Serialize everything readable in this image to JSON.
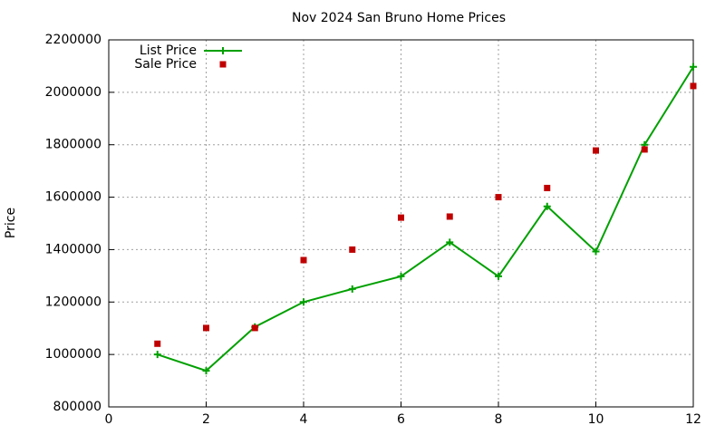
{
  "chart_data": {
    "type": "line",
    "title": "Nov 2024 San Bruno Home Prices",
    "y_label": "Price",
    "x": [
      1,
      2,
      3,
      4,
      5,
      6,
      7,
      8,
      9,
      10,
      11,
      12
    ],
    "series": [
      {
        "name": "List Price",
        "color": "#00a000",
        "style": "linespoints",
        "values": [
          1000000,
          938000,
          1105000,
          1200000,
          1250000,
          1298000,
          1428000,
          1298000,
          1565000,
          1393000,
          1800000,
          2097000
        ]
      },
      {
        "name": "Sale Price",
        "color": "#c00000",
        "style": "points",
        "values": [
          1041000,
          1101000,
          1101000,
          1360000,
          1400000,
          1522000,
          1526000,
          1600000,
          1635000,
          1778000,
          1782000,
          2024000
        ]
      }
    ],
    "xlim": [
      0,
      12
    ],
    "xticks": [
      0,
      2,
      4,
      6,
      8,
      10,
      12
    ],
    "ylim": [
      800000,
      2200000
    ],
    "yticks": [
      800000,
      1000000,
      1200000,
      1400000,
      1600000,
      1800000,
      2000000,
      2200000
    ],
    "grid": true,
    "legend": "top-left"
  }
}
